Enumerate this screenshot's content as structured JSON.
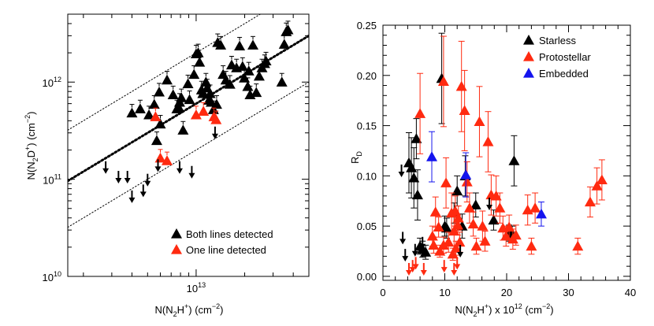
{
  "chart_data": [
    {
      "type": "scatter",
      "panel": "left",
      "xscale": "log",
      "yscale": "log",
      "xlim": [
        1600000000000.0,
        50000000000000.0
      ],
      "ylim": [
        10000000000.0,
        5000000000000.0
      ],
      "xticks": [
        {
          "value": 10000000000000.0,
          "label": "10",
          "exp": "13"
        }
      ],
      "yticks": [
        {
          "value": 10000000000.0,
          "label": "10",
          "exp": "10"
        },
        {
          "value": 100000000000.0,
          "label": "10",
          "exp": "11"
        },
        {
          "value": 1000000000000.0,
          "label": "10",
          "exp": "12"
        }
      ],
      "xlabel": {
        "pre": "N(N",
        "sub": "2",
        "mid": "H",
        "sup": "+",
        "post": ") (cm",
        "unit_sup": "−2",
        "end": ")"
      },
      "ylabel": {
        "pre": "N(N",
        "sub": "2",
        "mid": "D",
        "sup": "+",
        "post": ") (cm",
        "unit_sup": "−2",
        "end": ")"
      },
      "legend": {
        "placement": "bottom-right",
        "entries": [
          {
            "label": "Both lines detected",
            "color": "#000000"
          },
          {
            "label": "One line detected",
            "color": "#ff2a10"
          }
        ]
      },
      "reference_lines": [
        {
          "style": "dotted-thick",
          "ratio": 0.06
        },
        {
          "style": "dotted-thin",
          "ratio": 0.2
        },
        {
          "style": "dotted-thin",
          "ratio": 0.02
        }
      ],
      "series": [
        {
          "name": "Both lines detected",
          "color": "#000000",
          "points": [
            [
              4000000000000.0,
              480000000000.0
            ],
            [
              4500000000000.0,
              530000000000.0
            ],
            [
              5100000000000.0,
              460000000000.0
            ],
            [
              5500000000000.0,
              590000000000.0
            ],
            [
              5700000000000.0,
              250000000000.0
            ],
            [
              6000000000000.0,
              370000000000.0
            ],
            [
              5900000000000.0,
              790000000000.0
            ],
            [
              6600000000000.0,
              1050000000000.0
            ],
            [
              7200000000000.0,
              740000000000.0
            ],
            [
              7600000000000.0,
              530000000000.0
            ],
            [
              7800000000000.0,
              550000000000.0
            ],
            [
              8100000000000.0,
              690000000000.0
            ],
            [
              8300000000000.0,
              320000000000.0
            ],
            [
              7900000000000.0,
              620000000000.0
            ],
            [
              8900000000000.0,
              960000000000.0
            ],
            [
              9100000000000.0,
              660000000000.0
            ],
            [
              9700000000000.0,
              1200000000000.0
            ],
            [
              10000000000000.0,
              1950000000000.0
            ],
            [
              10300000000000.0,
              2000000000000.0
            ],
            [
              10500000000000.0,
              1600000000000.0
            ],
            [
              10800000000000.0,
              830000000000.0
            ],
            [
              11000000000000.0,
              760000000000.0
            ],
            [
              11500000000000.0,
              1000000000000.0
            ],
            [
              11700000000000.0,
              870000000000.0
            ],
            [
              12000000000000.0,
              650000000000.0
            ],
            [
              12200000000000.0,
              760000000000.0
            ],
            [
              12400000000000.0,
              620000000000.0
            ],
            [
              12800000000000.0,
              520000000000.0
            ],
            [
              13400000000000.0,
              590000000000.0
            ],
            [
              13600000000000.0,
              2550000000000.0
            ],
            [
              14200000000000.0,
              2400000000000.0
            ],
            [
              14700000000000.0,
              1200000000000.0
            ],
            [
              15300000000000.0,
              1050000000000.0
            ],
            [
              16200000000000.0,
              950000000000.0
            ],
            [
              16600000000000.0,
              1500000000000.0
            ],
            [
              17800000000000.0,
              1400000000000.0
            ],
            [
              18600000000000.0,
              2350000000000.0
            ],
            [
              19400000000000.0,
              1450000000000.0
            ],
            [
              19900000000000.0,
              1100000000000.0
            ],
            [
              20900000000000.0,
              900000000000.0
            ],
            [
              21200000000000.0,
              1300000000000.0
            ],
            [
              21600000000000.0,
              740000000000.0
            ],
            [
              22500000000000.0,
              2400000000000.0
            ],
            [
              23600000000000.0,
              780000000000.0
            ],
            [
              24600000000000.0,
              1150000000000.0
            ],
            [
              25600000000000.0,
              1400000000000.0
            ],
            [
              26600000000000.0,
              1550000000000.0
            ],
            [
              27100000000000.0,
              1650000000000.0
            ],
            [
              34000000000000.0,
              1000000000000.0
            ],
            [
              35200000000000.0,
              2450000000000.0
            ],
            [
              36200000000000.0,
              3300000000000.0
            ],
            [
              37100000000000.0,
              3450000000000.0
            ]
          ]
        },
        {
          "name": "One line detected",
          "color": "#ff2a10",
          "points": [
            [
              5600000000000.0,
              440000000000.0
            ],
            [
              6000000000000.0,
              165000000000.0
            ],
            [
              6600000000000.0,
              155000000000.0
            ],
            [
              10000000000000.0,
              460000000000.0
            ],
            [
              11100000000000.0,
              500000000000.0
            ],
            [
              12900000000000.0,
              440000000000.0
            ],
            [
              13300000000000.0,
              410000000000.0
            ]
          ]
        },
        {
          "name": "upper limits",
          "color": "#000000",
          "arrows": [
            [
              2750000000000.0,
              132000000000.0
            ],
            [
              3300000000000.0,
              105000000000.0
            ],
            [
              3750000000000.0,
              105000000000.0
            ],
            [
              4000000000000.0,
              66000000000.0
            ],
            [
              4700000000000.0,
              76000000000.0
            ],
            [
              5000000000000.0,
              98000000000.0
            ],
            [
              5800000000000.0,
              138000000000.0
            ],
            [
              7900000000000.0,
              132000000000.0
            ],
            [
              9400000000000.0,
              118000000000.0
            ],
            [
              13100000000000.0,
              300000000000.0
            ]
          ]
        }
      ]
    },
    {
      "type": "scatter",
      "panel": "right",
      "xlim": [
        0,
        40
      ],
      "ylim": [
        -0.004,
        0.25
      ],
      "xticks": [
        0,
        10,
        20,
        30,
        40
      ],
      "yticks": [
        "0.00",
        "0.05",
        "0.10",
        "0.15",
        "0.20",
        "0.25"
      ],
      "xlabel": {
        "pre": "N(N",
        "sub": "2",
        "mid": "H",
        "sup": "+",
        "post": ") x 10",
        "exp": "12",
        "tail": " (cm",
        "unit_sup": "−2",
        "end": ")"
      },
      "ylabel": {
        "pre": "R",
        "sub": "D"
      },
      "legend": {
        "placement": "top-right",
        "entries": [
          {
            "label": "Starless",
            "color": "#000000"
          },
          {
            "label": "Protostellar",
            "color": "#ff2a10"
          },
          {
            "label": "Embedded",
            "color": "#1414ee"
          }
        ]
      },
      "series": [
        {
          "name": "Starless",
          "color": "#000000",
          "points": [
            [
              4.2,
              0.113,
              0.03
            ],
            [
              4.6,
              0.108,
              0.03
            ],
            [
              5.0,
              0.098,
              0.03
            ],
            [
              5.4,
              0.137,
              0.02
            ],
            [
              5.6,
              0.081,
              0.025
            ],
            [
              6.0,
              0.03,
              0.008
            ],
            [
              6.4,
              0.027,
              0.008
            ],
            [
              6.9,
              0.024,
              0.007
            ],
            [
              9.5,
              0.197,
              0.045
            ],
            [
              10.0,
              0.05,
              0.01
            ],
            [
              10.3,
              0.048,
              0.01
            ],
            [
              11.5,
              0.063,
              0.01
            ],
            [
              12.0,
              0.085,
              0.015
            ],
            [
              12.8,
              0.05,
              0.012
            ],
            [
              13.3,
              0.1,
              0.02
            ],
            [
              15.0,
              0.071,
              0.012
            ],
            [
              17.9,
              0.056,
              0.01
            ],
            [
              20.4,
              0.043,
              0.008
            ],
            [
              20.9,
              0.042,
              0.008
            ],
            [
              21.2,
              0.115,
              0.025
            ]
          ]
        },
        {
          "name": "Protostellar",
          "color": "#ff2a10",
          "points": [
            [
              6.0,
              0.162,
              0.04
            ],
            [
              9.8,
              0.194,
              0.045
            ],
            [
              10.2,
              0.093,
              0.025
            ],
            [
              11.1,
              0.063,
              0.02
            ],
            [
              11.5,
              0.045,
              0.015
            ],
            [
              11.7,
              0.065,
              0.015
            ],
            [
              12.1,
              0.051,
              0.01
            ],
            [
              12.4,
              0.034,
              0.01
            ],
            [
              12.7,
              0.189,
              0.045
            ],
            [
              13.2,
              0.165,
              0.04
            ],
            [
              13.6,
              0.094,
              0.02
            ],
            [
              14.0,
              0.068,
              0.015
            ],
            [
              14.6,
              0.052,
              0.012
            ],
            [
              15.1,
              0.03,
              0.008
            ],
            [
              15.6,
              0.154,
              0.035
            ],
            [
              16.1,
              0.05,
              0.015
            ],
            [
              16.5,
              0.035,
              0.01
            ],
            [
              17.0,
              0.134,
              0.03
            ],
            [
              17.5,
              0.081,
              0.02
            ],
            [
              18.3,
              0.08,
              0.02
            ],
            [
              18.9,
              0.068,
              0.015
            ],
            [
              19.4,
              0.048,
              0.012
            ],
            [
              19.9,
              0.04,
              0.01
            ],
            [
              20.4,
              0.049,
              0.012
            ],
            [
              21.0,
              0.037,
              0.01
            ],
            [
              21.5,
              0.041,
              0.01
            ],
            [
              23.4,
              0.066,
              0.015
            ],
            [
              24.0,
              0.03,
              0.008
            ],
            [
              24.6,
              0.068,
              0.015
            ],
            [
              31.5,
              0.03,
              0.008
            ],
            [
              33.5,
              0.074,
              0.015
            ],
            [
              34.6,
              0.09,
              0.018
            ],
            [
              35.4,
              0.096,
              0.02
            ],
            [
              8.5,
              0.064,
              0.015
            ],
            [
              9.0,
              0.049,
              0.01
            ],
            [
              10.6,
              0.034,
              0.01
            ],
            [
              8.0,
              0.04,
              0.01
            ],
            [
              8.2,
              0.031,
              0.008
            ],
            [
              9.2,
              0.025,
              0.006
            ],
            [
              9.8,
              0.031,
              0.008
            ],
            [
              11.3,
              0.022,
              0.006
            ],
            [
              11.8,
              0.028,
              0.007
            ],
            [
              12.2,
              0.058,
              0.012
            ]
          ]
        },
        {
          "name": "Embedded",
          "color": "#1414ee",
          "points": [
            [
              7.9,
              0.119,
              0.025
            ],
            [
              13.4,
              0.101,
              0.022
            ],
            [
              25.6,
              0.062,
              0.012
            ]
          ]
        },
        {
          "name": "upper limits",
          "color": "#000000",
          "arrows": [
            [
              3.0,
              0.105
            ],
            [
              3.2,
              0.038
            ],
            [
              3.6,
              0.021
            ],
            [
              5.2,
              0.026
            ],
            [
              6.4,
              0.033
            ],
            [
              12.5,
              0.025
            ],
            [
              17.2,
              0.072
            ]
          ]
        },
        {
          "name": "upper limits protostellar",
          "color": "#ff2a10",
          "arrows": [
            [
              4.2,
              0.007
            ],
            [
              4.8,
              0.01
            ],
            [
              5.3,
              0.013
            ],
            [
              6.6,
              0.007
            ],
            [
              9.9,
              0.01
            ],
            [
              11.5,
              0.007
            ],
            [
              12.0,
              0.013
            ]
          ]
        }
      ]
    }
  ]
}
